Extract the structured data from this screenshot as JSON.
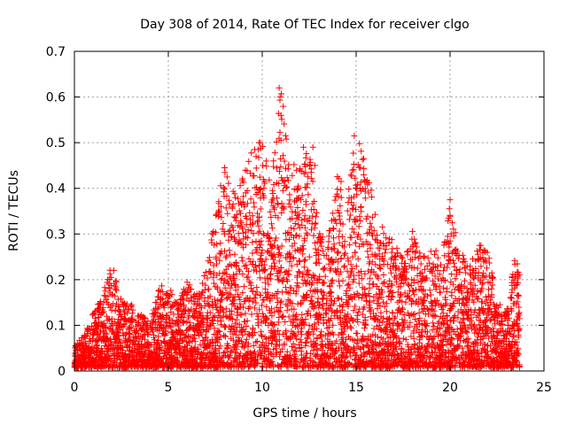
{
  "chart_data": {
    "type": "scatter",
    "title": "Day 308 of 2014, Rate Of TEC Index for receiver clgo",
    "xlabel": "GPS time / hours",
    "ylabel": "ROTI / TECUs",
    "xlim": [
      0,
      25
    ],
    "ylim": [
      0,
      0.7
    ],
    "xticks": [
      0,
      5,
      10,
      15,
      20,
      25
    ],
    "yticks": [
      0,
      0.1,
      0.2,
      0.3,
      0.4,
      0.5,
      0.6,
      0.7
    ],
    "xtick_labels": [
      "0",
      "5",
      "10",
      "15",
      "20",
      "25"
    ],
    "ytick_labels": [
      "0",
      "0.1",
      "0.2",
      "0.3",
      "0.4",
      "0.5",
      "0.6",
      "0.7"
    ],
    "grid": true,
    "marker": "plus",
    "color": "#ff0000",
    "series": [
      {
        "name": "ROTI",
        "envelope_x": [
          0,
          0.5,
          1,
          1.5,
          2,
          2.5,
          3,
          3.5,
          4,
          4.5,
          5,
          5.5,
          6,
          6.5,
          7,
          7.5,
          8,
          8.5,
          9,
          9.5,
          10,
          10.5,
          11,
          11.5,
          12,
          12.5,
          13,
          13.5,
          14,
          14.5,
          15,
          15.5,
          16,
          16.5,
          17,
          17.5,
          18,
          18.5,
          19,
          19.5,
          20,
          20.5,
          21,
          21.5,
          22,
          22.5,
          23,
          23.5,
          23.7
        ],
        "envelope_ymax": [
          0.05,
          0.07,
          0.12,
          0.16,
          0.23,
          0.15,
          0.14,
          0.12,
          0.1,
          0.18,
          0.18,
          0.14,
          0.19,
          0.16,
          0.21,
          0.34,
          0.44,
          0.38,
          0.42,
          0.48,
          0.5,
          0.4,
          0.62,
          0.42,
          0.49,
          0.47,
          0.32,
          0.3,
          0.42,
          0.38,
          0.51,
          0.46,
          0.34,
          0.3,
          0.28,
          0.24,
          0.3,
          0.24,
          0.28,
          0.24,
          0.37,
          0.26,
          0.22,
          0.27,
          0.26,
          0.15,
          0.12,
          0.25,
          0.22
        ],
        "highlights": [
          {
            "x": 10.9,
            "y": 0.62
          },
          {
            "x": 10.95,
            "y": 0.6
          },
          {
            "x": 11.0,
            "y": 0.56
          },
          {
            "x": 14.9,
            "y": 0.515
          },
          {
            "x": 11.0,
            "y": 0.505
          },
          {
            "x": 9.9,
            "y": 0.5
          },
          {
            "x": 12.2,
            "y": 0.49
          },
          {
            "x": 12.7,
            "y": 0.49
          },
          {
            "x": 9.6,
            "y": 0.485
          },
          {
            "x": 15.4,
            "y": 0.465
          },
          {
            "x": 10.6,
            "y": 0.46
          },
          {
            "x": 12.8,
            "y": 0.45
          },
          {
            "x": 8.0,
            "y": 0.445
          },
          {
            "x": 14.8,
            "y": 0.44
          },
          {
            "x": 14.2,
            "y": 0.415
          },
          {
            "x": 20.0,
            "y": 0.375
          }
        ]
      }
    ]
  }
}
